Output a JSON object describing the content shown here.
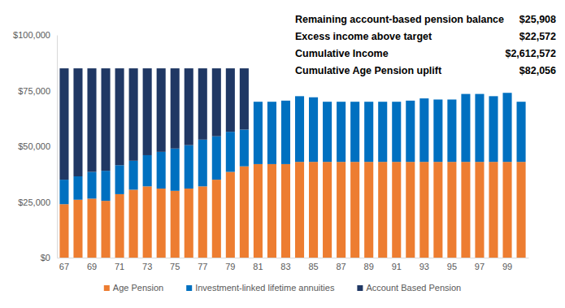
{
  "chart_data": {
    "type": "bar",
    "stacked": true,
    "grid": false,
    "legend": "bottom",
    "categories": [
      67,
      null,
      69,
      null,
      71,
      null,
      73,
      null,
      75,
      null,
      77,
      null,
      79,
      null,
      81,
      null,
      83,
      null,
      85,
      null,
      87,
      null,
      89,
      null,
      91,
      null,
      93,
      null,
      95,
      null,
      97,
      null,
      99,
      null
    ],
    "ylim": [
      0,
      100000
    ],
    "yticks": [
      {
        "value": 0,
        "label": "$0"
      },
      {
        "value": 25000,
        "label": "$25,000"
      },
      {
        "value": 50000,
        "label": "$50,000"
      },
      {
        "value": 75000,
        "label": "$75,000"
      },
      {
        "value": 100000,
        "label": "$100,000"
      }
    ],
    "series": [
      {
        "name": "Age Pension",
        "color": "#ED7D31",
        "values": [
          24000,
          26000,
          26500,
          25500,
          28500,
          30500,
          32000,
          31000,
          30000,
          31000,
          32000,
          35000,
          38500,
          41000,
          42000,
          42000,
          42000,
          43000,
          43000,
          43000,
          43000,
          43000,
          43000,
          43000,
          43000,
          43000,
          43000,
          43000,
          43000,
          43000,
          43000,
          43000,
          43000,
          43000
        ]
      },
      {
        "name": "Investment-linked lifetime annuities",
        "color": "#0070C0",
        "values": [
          11000,
          10500,
          12000,
          13500,
          13000,
          13000,
          14000,
          16500,
          19000,
          19500,
          21000,
          19500,
          18000,
          16500,
          28000,
          28000,
          28500,
          29500,
          29000,
          27000,
          27000,
          27000,
          27000,
          27000,
          27000,
          27500,
          28500,
          28000,
          28000,
          30500,
          30500,
          29500,
          31000,
          27000
        ]
      },
      {
        "name": "Account Based Pension",
        "color": "#203864",
        "values": [
          50000,
          48500,
          46500,
          46000,
          43500,
          41500,
          39000,
          37500,
          36000,
          34500,
          32000,
          30500,
          28500,
          27500,
          0,
          0,
          0,
          0,
          0,
          0,
          0,
          0,
          0,
          0,
          0,
          0,
          0,
          0,
          0,
          0,
          0,
          0,
          0,
          0
        ]
      }
    ],
    "annotations": [
      {
        "label": "Remaining account-based pension balance",
        "value_label": "$25,908"
      },
      {
        "label": "Excess income above target",
        "value_label": "$22,572"
      },
      {
        "label": "Cumulative Income",
        "value_label": "$2,612,572"
      },
      {
        "label": "Cumulative Age Pension uplift",
        "value_label": "$82,056"
      }
    ]
  }
}
